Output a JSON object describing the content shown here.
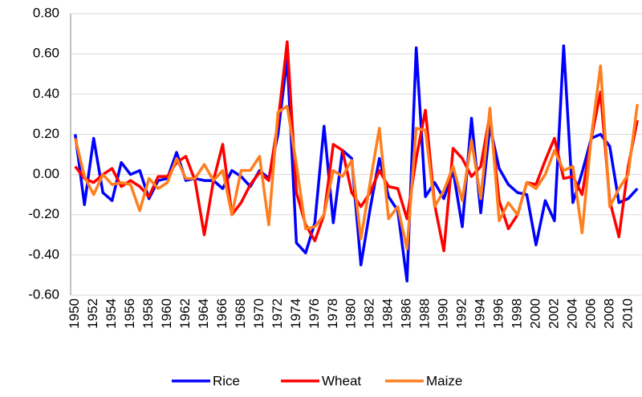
{
  "chart_data": {
    "type": "line",
    "categories": [
      "1950",
      null,
      "1952",
      null,
      "1954",
      null,
      "1956",
      null,
      "1958",
      null,
      "1960",
      null,
      "1962",
      null,
      "1964",
      null,
      "1966",
      null,
      "1968",
      null,
      "1970",
      null,
      "1972",
      null,
      "1974",
      null,
      "1976",
      null,
      "1978",
      null,
      "1980",
      null,
      "1982",
      null,
      "1984",
      null,
      "1986",
      null,
      "1988",
      null,
      "1990",
      null,
      "1992",
      null,
      "1994",
      null,
      "1996",
      null,
      "1998",
      null,
      "2000",
      null,
      "2002",
      null,
      "2004",
      null,
      "2006",
      null,
      "2008",
      null,
      "2010",
      null
    ],
    "series": [
      {
        "name": "Rice",
        "color": "#0000ff",
        "values": [
          0.2,
          -0.15,
          0.18,
          -0.09,
          -0.13,
          0.06,
          0.0,
          0.02,
          -0.12,
          -0.03,
          -0.02,
          0.11,
          -0.03,
          -0.02,
          -0.03,
          -0.03,
          -0.07,
          0.02,
          -0.01,
          -0.06,
          0.02,
          -0.02,
          0.2,
          0.58,
          -0.34,
          -0.39,
          -0.24,
          0.24,
          -0.24,
          0.12,
          0.08,
          -0.45,
          -0.17,
          0.08,
          -0.11,
          -0.18,
          -0.53,
          0.63,
          -0.11,
          -0.04,
          -0.12,
          0.02,
          -0.26,
          0.28,
          -0.19,
          0.24,
          0.03,
          -0.05,
          -0.09,
          -0.1,
          -0.35,
          -0.13,
          -0.23,
          0.64,
          -0.14,
          0.01,
          0.18,
          0.2,
          0.14,
          -0.14,
          -0.12,
          -0.07
        ]
      },
      {
        "name": "Wheat",
        "color": "#ff0000",
        "values": [
          0.04,
          -0.02,
          -0.04,
          0.0,
          0.03,
          -0.06,
          -0.03,
          -0.06,
          -0.11,
          -0.01,
          -0.01,
          0.06,
          0.09,
          -0.03,
          -0.3,
          -0.03,
          0.15,
          -0.2,
          -0.14,
          -0.05,
          0.01,
          -0.03,
          0.26,
          0.66,
          -0.09,
          -0.25,
          -0.33,
          -0.2,
          0.15,
          0.12,
          -0.09,
          -0.16,
          -0.09,
          0.02,
          -0.06,
          -0.07,
          -0.22,
          0.08,
          0.32,
          -0.15,
          -0.38,
          0.13,
          0.08,
          -0.01,
          0.04,
          0.3,
          -0.13,
          -0.27,
          -0.2,
          -0.04,
          -0.05,
          0.07,
          0.18,
          -0.02,
          -0.01,
          -0.1,
          0.18,
          0.41,
          -0.13,
          -0.31,
          0.04,
          0.27
        ]
      },
      {
        "name": "Maize",
        "color": "#ff7f1e",
        "values": [
          0.18,
          -0.01,
          -0.1,
          0.0,
          -0.05,
          -0.04,
          -0.05,
          -0.18,
          -0.02,
          -0.07,
          -0.04,
          0.08,
          -0.02,
          -0.02,
          0.05,
          -0.03,
          0.02,
          -0.2,
          0.02,
          0.02,
          0.09,
          -0.25,
          0.31,
          0.34,
          0.05,
          -0.27,
          -0.26,
          -0.2,
          0.02,
          -0.01,
          0.07,
          -0.32,
          -0.04,
          0.23,
          -0.22,
          -0.16,
          -0.37,
          0.23,
          0.22,
          -0.16,
          -0.08,
          0.04,
          -0.13,
          0.17,
          -0.12,
          0.33,
          -0.23,
          -0.14,
          -0.2,
          -0.04,
          -0.07,
          0.0,
          0.12,
          0.02,
          0.04,
          -0.29,
          0.19,
          0.54,
          -0.16,
          -0.07,
          0.0,
          0.35
        ]
      }
    ],
    "ylim": [
      -0.6,
      0.8
    ],
    "yticks": [
      {
        "value": -0.6,
        "label": "-0.60"
      },
      {
        "value": -0.4,
        "label": "-0.40"
      },
      {
        "value": -0.2,
        "label": "-0.20"
      },
      {
        "value": 0,
        "label": "0.00"
      },
      {
        "value": 0.2,
        "label": "0.20"
      },
      {
        "value": 0.4,
        "label": "0.40"
      },
      {
        "value": 0.6,
        "label": "0.60"
      },
      {
        "value": 0.8,
        "label": "0.80"
      }
    ],
    "grid": true,
    "legend": "bottom"
  }
}
